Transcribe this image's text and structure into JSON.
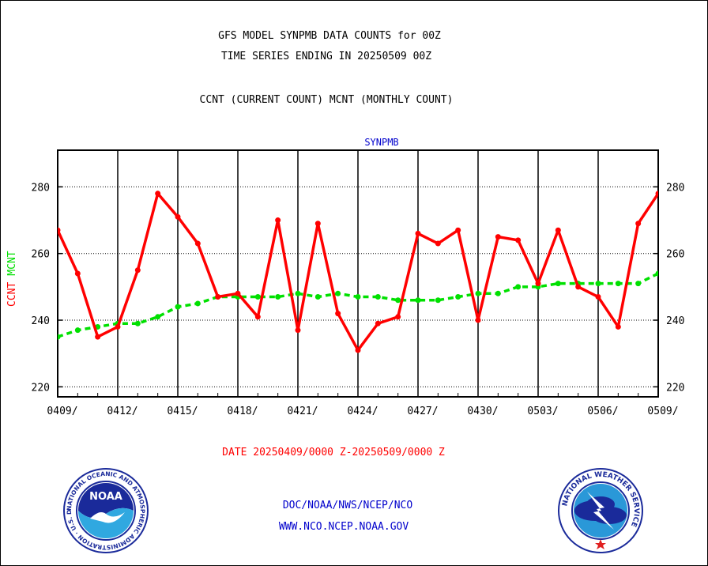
{
  "header": {
    "title_line1": "GFS MODEL SYNPMB DATA COUNTS for 00Z",
    "title_line2": "TIME SERIES ENDING IN 20250509 00Z",
    "subtitle": "CCNT (CURRENT COUNT) MCNT (MONTHLY COUNT)"
  },
  "footer": {
    "date_range": "DATE 20250409/0000 Z-20250509/0000 Z",
    "org_line": "DOC/NOAA/NWS/NCEP/NCO",
    "url_line": "WWW.NCO.NCEP.NOAA.GOV"
  },
  "logos": {
    "noaa_text": "NOAA",
    "noaa_ring_text": "NATIONAL OCEANIC AND ATMOSPHERIC ADMINISTRATION · U.S. DEPARTMENT OF COMMERCE",
    "nws_ring_text": "NATIONAL WEATHER SERVICE"
  },
  "colors": {
    "ccnt": "#ff0000",
    "mcnt": "#00e000",
    "panel_label": "#0000cc",
    "footer_text": "#0000cc",
    "date_text": "#ff0000"
  },
  "chart_data": {
    "type": "line",
    "panel_label": "SYNPMB",
    "ylabel_ccnt": "CCNT",
    "ylabel_mcnt": "MCNT",
    "xlabel": "",
    "ylim": [
      217,
      291
    ],
    "yticks": [
      220,
      240,
      260,
      280
    ],
    "x_tick_labels": [
      "0409/",
      "0412/",
      "0415/",
      "0418/",
      "0421/",
      "0424/",
      "0427/",
      "0430/",
      "0503/",
      "0506/",
      "0509/"
    ],
    "x_days": 30,
    "grid": true,
    "series": [
      {
        "name": "CCNT",
        "style": "solid",
        "values": [
          267,
          254,
          235,
          238,
          255,
          278,
          271,
          263,
          247,
          248,
          241,
          270,
          237,
          269,
          242,
          231,
          239,
          241,
          266,
          263,
          267,
          240,
          265,
          264,
          251,
          267,
          250,
          247,
          238,
          269,
          278
        ]
      },
      {
        "name": "MCNT",
        "style": "dashed",
        "values": [
          235,
          237,
          238,
          239,
          239,
          241,
          244,
          245,
          247,
          247,
          247,
          247,
          248,
          247,
          248,
          247,
          247,
          246,
          246,
          246,
          247,
          248,
          248,
          250,
          250,
          251,
          251,
          251,
          251,
          251,
          254
        ]
      }
    ]
  }
}
